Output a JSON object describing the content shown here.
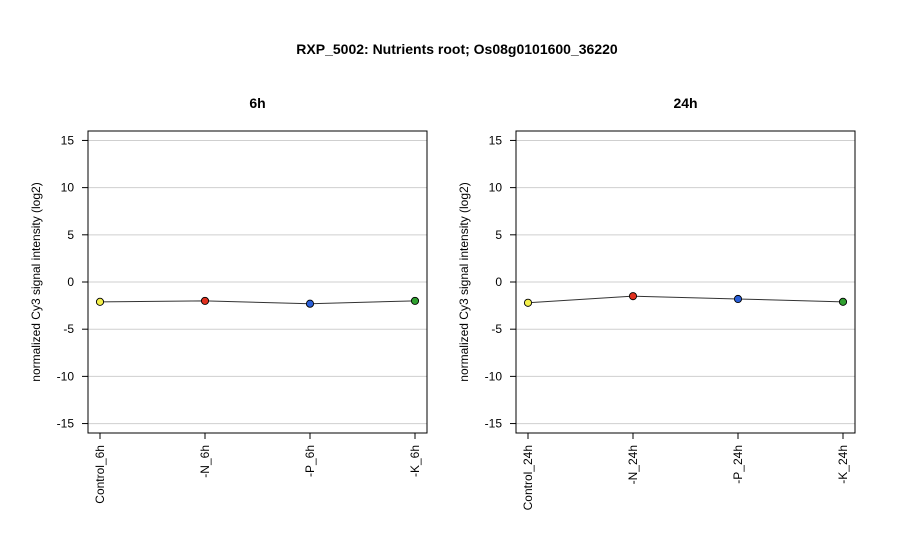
{
  "title": "RXP_5002: Nutrients root; Os08g0101600_36220",
  "chart_data": [
    {
      "type": "line",
      "title": "6h",
      "ylabel": "normalized Cy3 signal intensity (log2)",
      "xlabel": "",
      "ylim": [
        -16,
        16
      ],
      "yticks": [
        -15,
        -10,
        -5,
        0,
        5,
        10,
        15
      ],
      "grid": true,
      "categories": [
        "Control_6h",
        "-N_6h",
        "-P_6h",
        "-K_6h"
      ],
      "values": [
        -2.1,
        -2.0,
        -2.3,
        -2.0
      ],
      "point_colors": [
        "#f4f04a",
        "#e0301e",
        "#2a5fd8",
        "#30a030"
      ]
    },
    {
      "type": "line",
      "title": "24h",
      "ylabel": "normalized Cy3 signal intensity (log2)",
      "xlabel": "",
      "ylim": [
        -16,
        16
      ],
      "yticks": [
        -15,
        -10,
        -5,
        0,
        5,
        10,
        15
      ],
      "grid": true,
      "categories": [
        "Control_24h",
        "-N_24h",
        "-P_24h",
        "-K_24h"
      ],
      "values": [
        -2.2,
        -1.5,
        -1.8,
        -2.1
      ],
      "point_colors": [
        "#f4f04a",
        "#e0301e",
        "#2a5fd8",
        "#30a030"
      ]
    }
  ]
}
